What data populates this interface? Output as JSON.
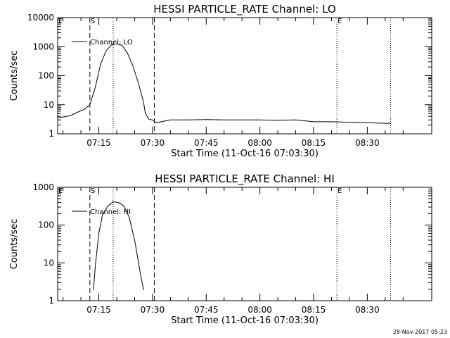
{
  "footer": {
    "timestamp": "28-Nov-2017 05:23"
  },
  "chart_data": [
    {
      "type": "line",
      "title": "HESSI PARTICLE_RATE Channel: LO",
      "xlabel": "Start Time (11-Oct-16 07:03:30)",
      "ylabel": "Counts/sec",
      "y_scale": "log",
      "ylim": [
        1,
        10000
      ],
      "xlim": [
        "07:03:30",
        "08:48:00"
      ],
      "x_ticks": [
        "07:15",
        "07:30",
        "07:45",
        "08:00",
        "08:15",
        "08:30"
      ],
      "y_ticks": [
        "1",
        "10",
        "100",
        "1000",
        "10000"
      ],
      "legend": "Channel: LO",
      "legend_position": "top-left",
      "markers": [
        {
          "label": "E",
          "time": "07:03:30",
          "style": "dotted"
        },
        {
          "label": "S",
          "time": "07:12:30",
          "style": "dashed"
        },
        {
          "label": "",
          "time": "07:19:00",
          "style": "dotted"
        },
        {
          "label": "",
          "time": "07:30:30",
          "style": "dashed"
        },
        {
          "label": "E",
          "time": "08:21:30",
          "style": "dotted"
        },
        {
          "label": "",
          "time": "08:36:30",
          "style": "dotted"
        }
      ],
      "series": [
        {
          "name": "Channel: LO",
          "x": [
            "07:03:30",
            "07:05:00",
            "07:07:00",
            "07:09:00",
            "07:11:00",
            "07:12:30",
            "07:14:00",
            "07:15:30",
            "07:17:00",
            "07:18:30",
            "07:20:00",
            "07:21:30",
            "07:23:00",
            "07:24:30",
            "07:26:00",
            "07:27:30",
            "07:28:00",
            "07:29:00",
            "07:30:00",
            "07:31:00",
            "07:35:00",
            "07:40:00",
            "07:45:00",
            "07:50:00",
            "07:55:00",
            "08:00:00",
            "08:05:00",
            "08:10:00",
            "08:15:00",
            "08:20:00",
            "08:25:00",
            "08:30:00",
            "08:35:00",
            "08:36:30"
          ],
          "y": [
            3.5,
            3.8,
            4.2,
            5.5,
            7,
            10,
            40,
            250,
            700,
            1150,
            1250,
            1100,
            600,
            220,
            60,
            12,
            5,
            3.2,
            3,
            2.4,
            3,
            3,
            3.1,
            3,
            3,
            3,
            2.9,
            3,
            2.6,
            2.6,
            2.5,
            2.4,
            2.3,
            2.3
          ]
        }
      ]
    },
    {
      "type": "line",
      "title": "HESSI PARTICLE_RATE Channel: HI",
      "xlabel": "Start Time (11-Oct-16 07:03:30)",
      "ylabel": "Counts/sec",
      "y_scale": "log",
      "ylim": [
        1,
        1000
      ],
      "xlim": [
        "07:03:30",
        "08:48:00"
      ],
      "x_ticks": [
        "07:15",
        "07:30",
        "07:45",
        "08:00",
        "08:15",
        "08:30"
      ],
      "y_ticks": [
        "1",
        "10",
        "100",
        "1000"
      ],
      "legend": "Channel: HI",
      "legend_position": "top-left",
      "markers": [
        {
          "label": "E",
          "time": "07:03:30",
          "style": "dotted"
        },
        {
          "label": "S",
          "time": "07:12:30",
          "style": "dashed"
        },
        {
          "label": "",
          "time": "07:19:00",
          "style": "dotted"
        },
        {
          "label": "",
          "time": "07:30:30",
          "style": "dashed"
        },
        {
          "label": "E",
          "time": "08:21:30",
          "style": "dotted"
        },
        {
          "label": "",
          "time": "08:36:30",
          "style": "dotted"
        }
      ],
      "series": [
        {
          "name": "Channel: HI",
          "x": [
            "07:13:30",
            "07:14:00",
            "07:15:00",
            "07:16:00",
            "07:17:30",
            "07:19:00",
            "07:20:30",
            "07:22:00",
            "07:23:30",
            "07:25:00",
            "07:26:30",
            "07:27:30"
          ],
          "y": [
            1.9,
            8,
            60,
            180,
            320,
            410,
            400,
            320,
            160,
            40,
            6,
            1.9
          ]
        }
      ]
    }
  ]
}
